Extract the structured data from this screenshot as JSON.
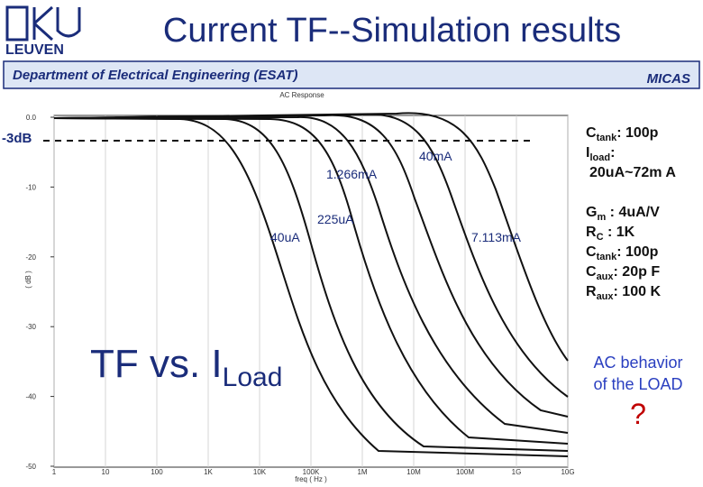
{
  "header": {
    "title": "Current TF--Simulation results",
    "logo": "LEUVEN",
    "department": "Department of Electrical Engineering (ESAT)",
    "group": "MICAS"
  },
  "plot": {
    "title": "AC Response",
    "x_label": "freq ( Hz )",
    "y_label": "( dB )",
    "x_ticks": [
      "1",
      "10",
      "100",
      "1K",
      "10K",
      "100K",
      "1M",
      "10M",
      "100M",
      "1G",
      "10G"
    ],
    "y_ticks": [
      "0.0",
      "-10",
      "-20",
      "-30",
      "-40",
      "-50"
    ],
    "marker": "-3dB",
    "annotations": [
      "40uA",
      "225uA",
      "1.266mA",
      "7.113mA",
      "40mA"
    ],
    "caption": {
      "main": "TF vs. I",
      "sub": "Load"
    }
  },
  "side": {
    "load": [
      {
        "name": "C",
        "sub": "tank",
        "value": ": 100p"
      },
      {
        "name": "I",
        "sub": "load",
        "value": ":"
      }
    ],
    "load_range": "20uA~72m A",
    "params": [
      {
        "name": "G",
        "sub": "m",
        "value": " : 4uA/V"
      },
      {
        "name": "R",
        "sub": "C",
        "value": " : 1K"
      },
      {
        "name": "C",
        "sub": "tank",
        "value": ": 100p"
      },
      {
        "name": "C",
        "sub": "aux",
        "value": ": 20p F"
      },
      {
        "name": "R",
        "sub": "aux",
        "value": ": 100 K"
      }
    ],
    "question": {
      "text": "AC behavior of the LOAD",
      "mark": "?"
    }
  }
}
